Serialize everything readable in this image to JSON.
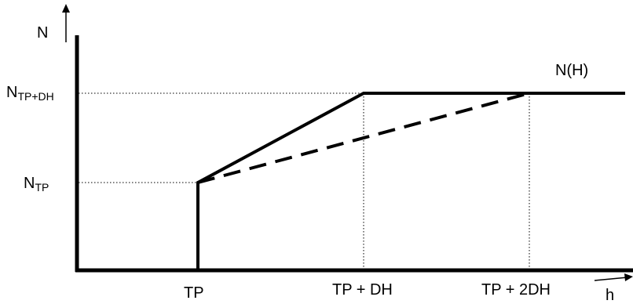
{
  "axes": {
    "y_label": "N",
    "x_label": "h"
  },
  "y_ticks": [
    {
      "main": "N",
      "sub": "TP+DH"
    },
    {
      "main": "N",
      "sub": "TP"
    }
  ],
  "x_ticks": [
    "TP",
    "TP + DH",
    "TP + 2DH"
  ],
  "curve_label": "N(H)",
  "colors": {
    "ink": "#000000"
  }
}
